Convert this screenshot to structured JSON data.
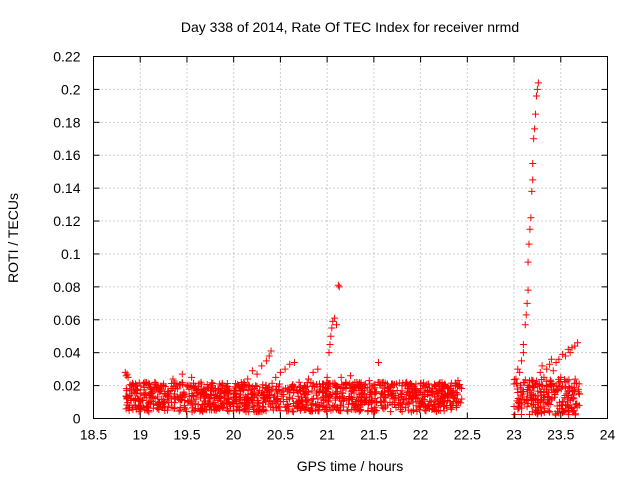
{
  "chart_data": {
    "type": "scatter",
    "title": "Day 338 of 2014, Rate Of TEC Index for receiver nrmd",
    "xlabel": "GPS time / hours",
    "ylabel": "ROTI / TECUs",
    "xlim": [
      18.5,
      24
    ],
    "ylim": [
      0,
      0.22
    ],
    "xticks": [
      18.5,
      19,
      19.5,
      20,
      20.5,
      21,
      21.5,
      22,
      22.5,
      23,
      23.5,
      24
    ],
    "xtick_labels": [
      "18.5",
      "19",
      "19.5",
      "20",
      "20.5",
      "21",
      "21.5",
      "22",
      "22.5",
      "23",
      "23.5",
      "24"
    ],
    "yticks": [
      0,
      0.02,
      0.04,
      0.06,
      0.08,
      0.1,
      0.12,
      0.14,
      0.16,
      0.18,
      0.2,
      0.22
    ],
    "ytick_labels": [
      "0",
      "0.02",
      "0.04",
      "0.06",
      "0.08",
      "0.1",
      "0.12",
      "0.14",
      "0.16",
      "0.18",
      "0.2",
      "0.22"
    ],
    "grid": true,
    "marker": "plus",
    "color": "#ff0000",
    "series": [
      {
        "name": "ROTI",
        "points": [
          [
            18.84,
            0.028
          ],
          [
            18.85,
            0.026
          ],
          [
            18.86,
            0.027
          ],
          [
            18.87,
            0.025
          ],
          [
            18.9,
            0.012
          ],
          [
            18.95,
            0.018
          ],
          [
            19.0,
            0.015
          ],
          [
            19.05,
            0.022
          ],
          [
            19.1,
            0.014
          ],
          [
            19.15,
            0.019
          ],
          [
            19.2,
            0.016
          ],
          [
            19.25,
            0.021
          ],
          [
            19.3,
            0.013
          ],
          [
            19.35,
            0.024
          ],
          [
            19.4,
            0.018
          ],
          [
            19.45,
            0.027
          ],
          [
            19.5,
            0.02
          ],
          [
            19.55,
            0.025
          ],
          [
            19.6,
            0.017
          ],
          [
            19.65,
            0.022
          ],
          [
            19.7,
            0.015
          ],
          [
            19.75,
            0.019
          ],
          [
            19.8,
            0.014
          ],
          [
            19.85,
            0.021
          ],
          [
            19.9,
            0.016
          ],
          [
            19.95,
            0.018
          ],
          [
            20.0,
            0.013
          ],
          [
            20.05,
            0.02
          ],
          [
            20.1,
            0.017
          ],
          [
            20.15,
            0.024
          ],
          [
            20.2,
            0.029
          ],
          [
            20.25,
            0.027
          ],
          [
            20.3,
            0.032
          ],
          [
            20.35,
            0.035
          ],
          [
            20.38,
            0.038
          ],
          [
            20.4,
            0.041
          ],
          [
            20.45,
            0.025
          ],
          [
            20.5,
            0.028
          ],
          [
            20.55,
            0.03
          ],
          [
            20.6,
            0.033
          ],
          [
            20.65,
            0.034
          ],
          [
            20.7,
            0.022
          ],
          [
            20.75,
            0.018
          ],
          [
            20.8,
            0.024
          ],
          [
            20.85,
            0.028
          ],
          [
            20.9,
            0.03
          ],
          [
            20.95,
            0.021
          ],
          [
            21.0,
            0.025
          ],
          [
            21.02,
            0.04
          ],
          [
            21.03,
            0.045
          ],
          [
            21.04,
            0.05
          ],
          [
            21.05,
            0.055
          ],
          [
            21.06,
            0.059
          ],
          [
            21.08,
            0.061
          ],
          [
            21.1,
            0.057
          ],
          [
            21.12,
            0.081
          ],
          [
            21.13,
            0.08
          ],
          [
            21.15,
            0.025
          ],
          [
            21.2,
            0.022
          ],
          [
            21.25,
            0.026
          ],
          [
            21.3,
            0.019
          ],
          [
            21.35,
            0.021
          ],
          [
            21.4,
            0.018
          ],
          [
            21.45,
            0.023
          ],
          [
            21.5,
            0.02
          ],
          [
            21.55,
            0.034
          ],
          [
            21.6,
            0.022
          ],
          [
            21.65,
            0.019
          ],
          [
            21.7,
            0.021
          ],
          [
            21.75,
            0.017
          ],
          [
            21.8,
            0.02
          ],
          [
            21.85,
            0.022
          ],
          [
            21.9,
            0.018
          ],
          [
            21.95,
            0.021
          ],
          [
            22.0,
            0.016
          ],
          [
            22.05,
            0.019
          ],
          [
            22.1,
            0.014
          ],
          [
            22.15,
            0.02
          ],
          [
            22.2,
            0.017
          ],
          [
            22.25,
            0.015
          ],
          [
            22.3,
            0.018
          ],
          [
            22.35,
            0.013
          ],
          [
            22.38,
            0.021
          ],
          [
            22.4,
            0.023
          ],
          [
            22.42,
            0.019
          ],
          [
            23.0,
            0.021
          ],
          [
            23.02,
            0.024
          ],
          [
            23.04,
            0.03
          ],
          [
            23.06,
            0.028
          ],
          [
            23.08,
            0.035
          ],
          [
            23.1,
            0.04
          ],
          [
            23.1,
            0.045
          ],
          [
            23.12,
            0.057
          ],
          [
            23.13,
            0.063
          ],
          [
            23.14,
            0.07
          ],
          [
            23.15,
            0.078
          ],
          [
            23.15,
            0.095
          ],
          [
            23.16,
            0.106
          ],
          [
            23.17,
            0.115
          ],
          [
            23.18,
            0.122
          ],
          [
            23.19,
            0.138
          ],
          [
            23.2,
            0.145
          ],
          [
            23.2,
            0.155
          ],
          [
            23.21,
            0.17
          ],
          [
            23.22,
            0.176
          ],
          [
            23.23,
            0.185
          ],
          [
            23.24,
            0.196
          ],
          [
            23.25,
            0.2
          ],
          [
            23.26,
            0.204
          ],
          [
            23.28,
            0.028
          ],
          [
            23.3,
            0.032
          ],
          [
            23.32,
            0.025
          ],
          [
            23.35,
            0.03
          ],
          [
            23.38,
            0.033
          ],
          [
            23.4,
            0.036
          ],
          [
            23.42,
            0.029
          ],
          [
            23.45,
            0.034
          ],
          [
            23.48,
            0.036
          ],
          [
            23.5,
            0.025
          ],
          [
            23.52,
            0.039
          ],
          [
            23.55,
            0.038
          ],
          [
            23.58,
            0.042
          ],
          [
            23.6,
            0.04
          ],
          [
            23.62,
            0.043
          ],
          [
            23.65,
            0.044
          ],
          [
            23.68,
            0.046
          ]
        ]
      }
    ]
  }
}
